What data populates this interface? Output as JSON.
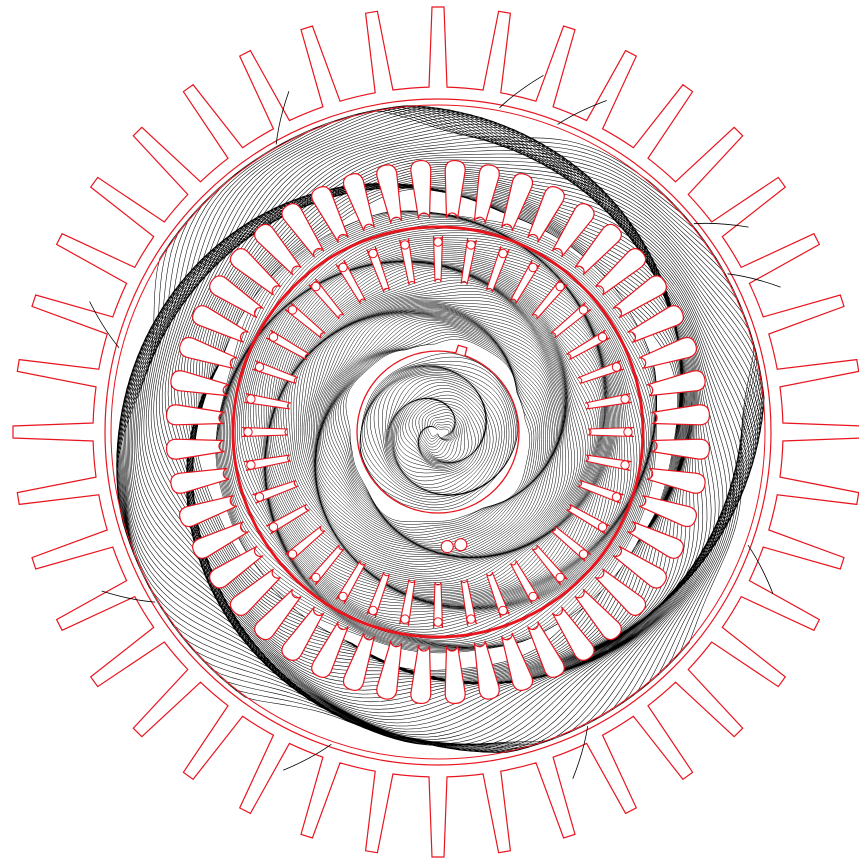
{
  "diagram": {
    "kind": "motor cross-section with magnetic flux lines",
    "colors": {
      "background": "#ffffff",
      "geometry": "#e8141e",
      "flux_lines": "#000000"
    },
    "stator": {
      "cooling_fin_count": 40,
      "slot_count": 48
    },
    "rotor": {
      "bar_count": 36
    },
    "shaft": {
      "keyway": true
    }
  }
}
